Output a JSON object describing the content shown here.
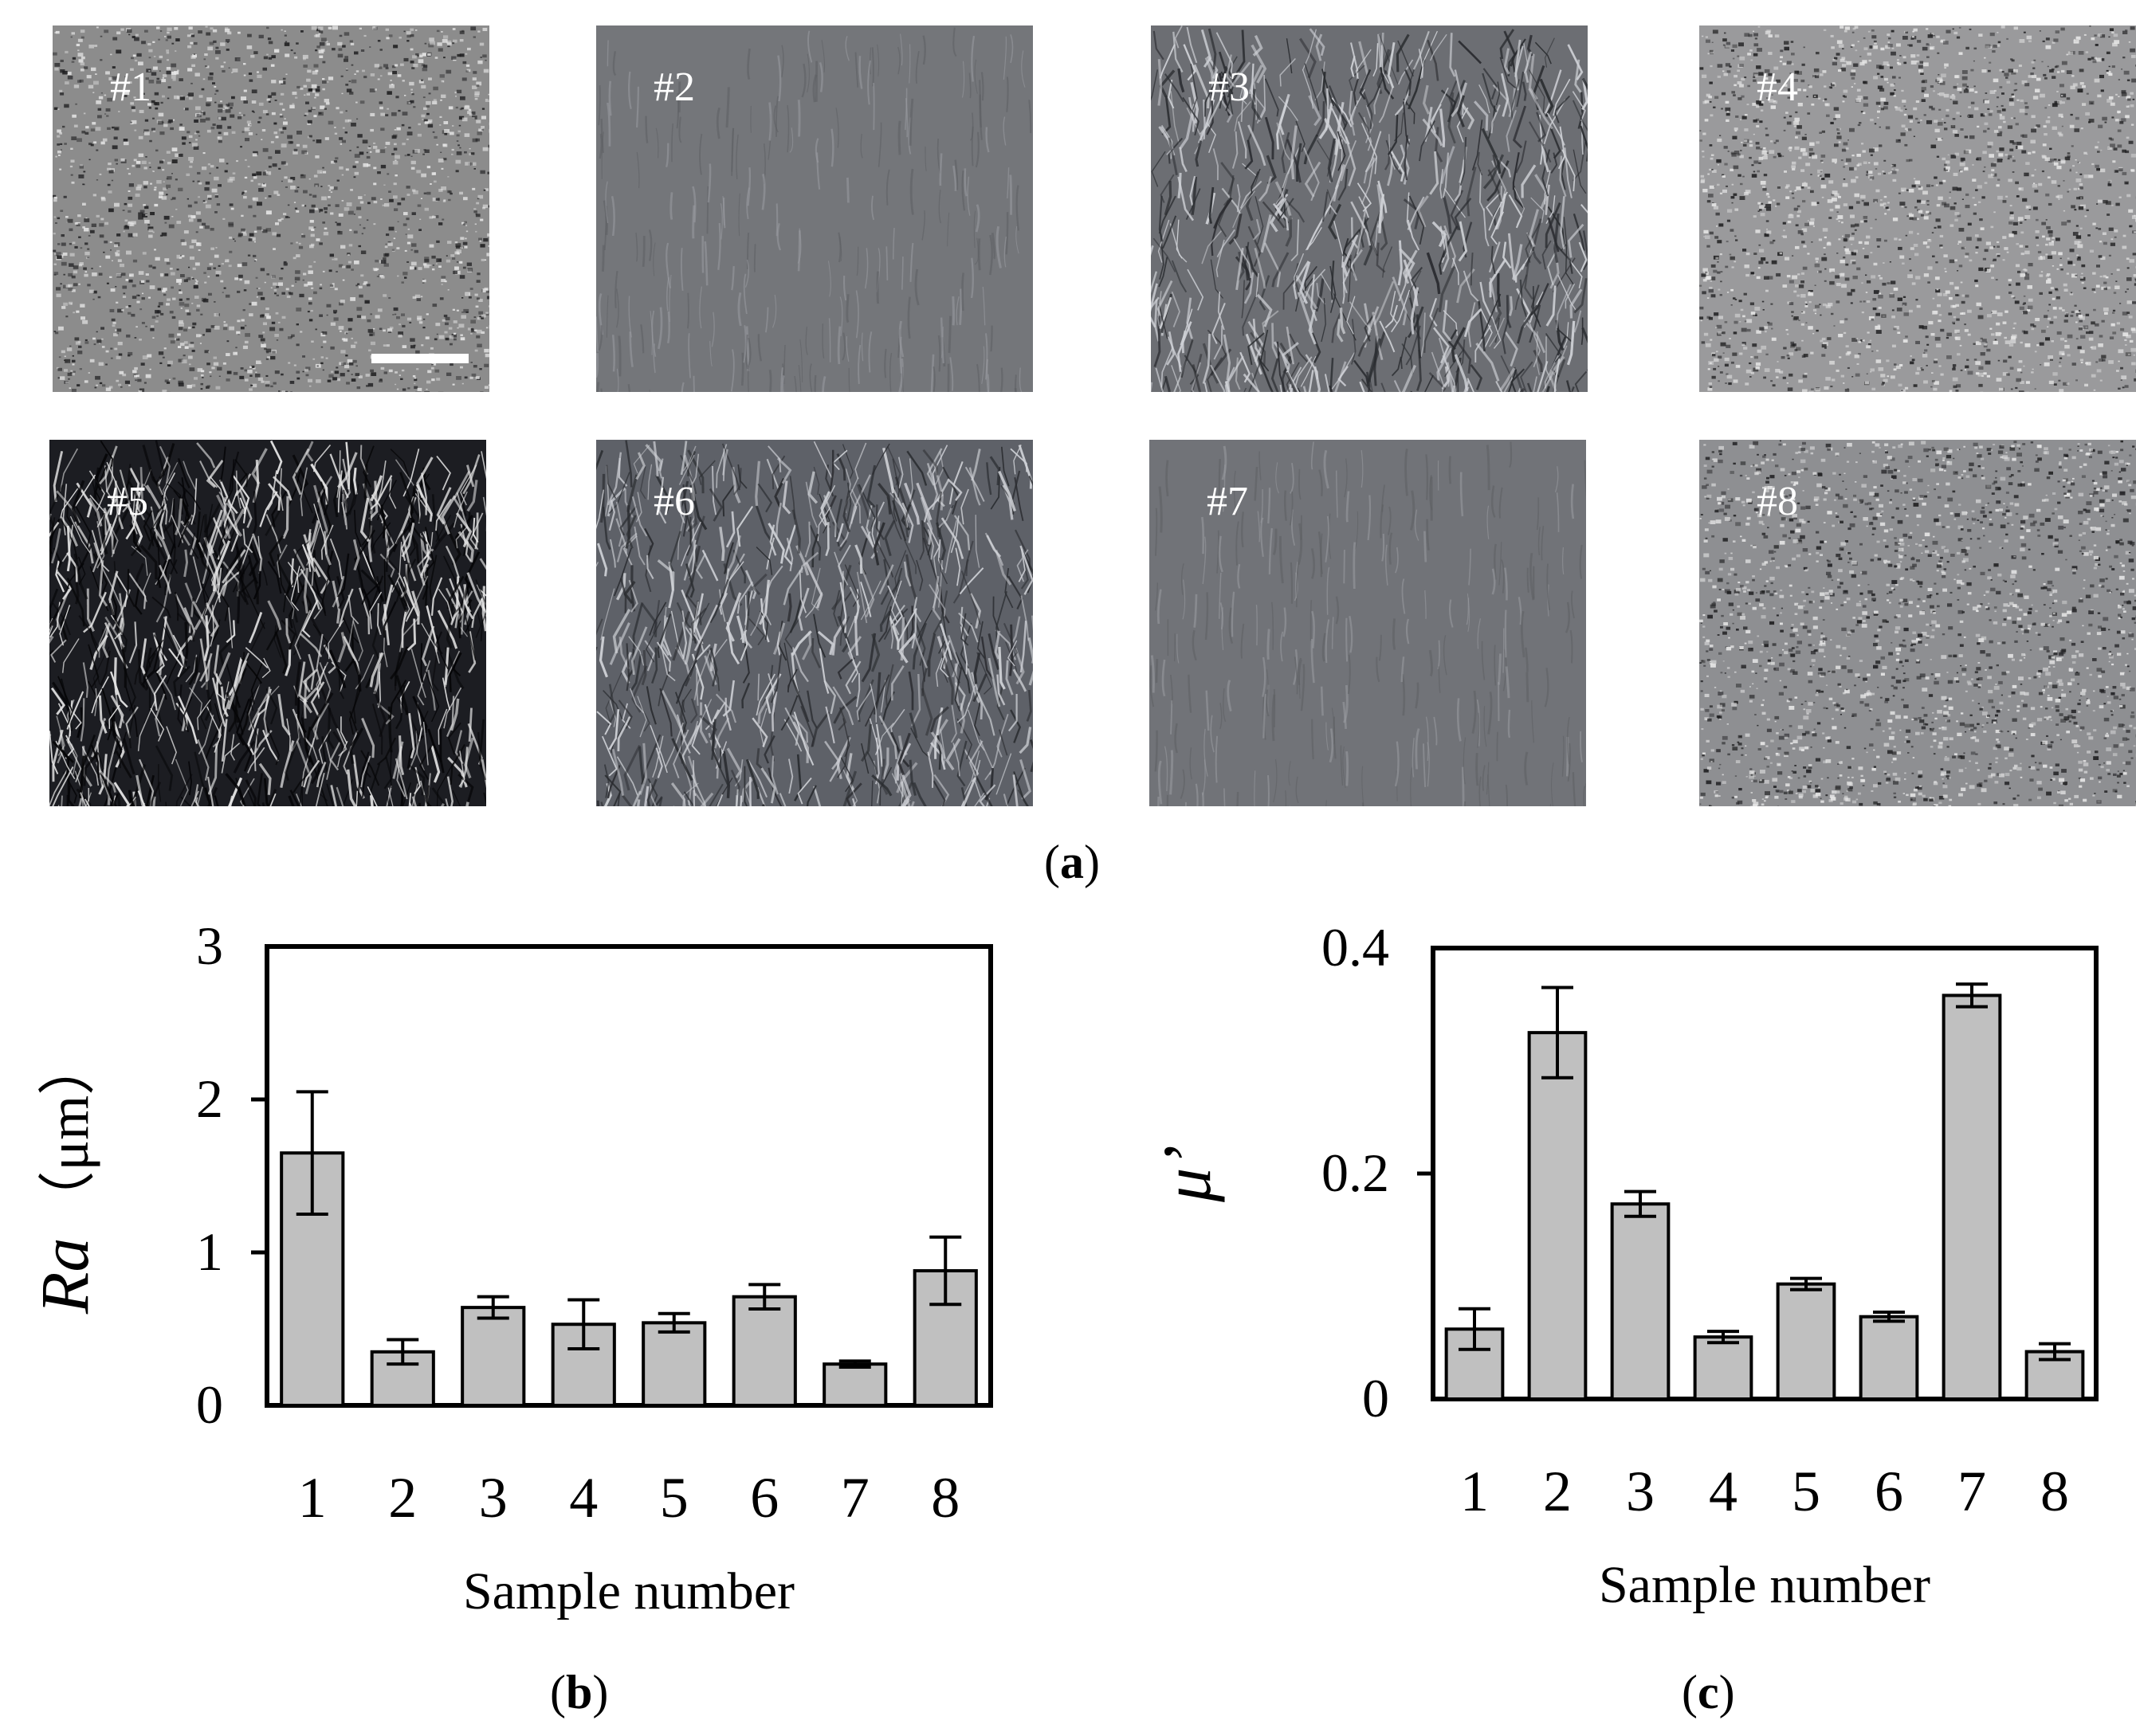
{
  "photos": [
    {
      "label": "#1",
      "tone": "#8c8c8c",
      "style": "speckle"
    },
    {
      "label": "#2",
      "tone": "#74767a",
      "style": "smooth"
    },
    {
      "label": "#3",
      "tone": "#6c6e73",
      "style": "cracked"
    },
    {
      "label": "#4",
      "tone": "#9a9a9c",
      "style": "speckle"
    },
    {
      "label": "#5",
      "tone": "#1c1d22",
      "style": "network"
    },
    {
      "label": "#6",
      "tone": "#5e6168",
      "style": "cracked"
    },
    {
      "label": "#7",
      "tone": "#717378",
      "style": "smooth"
    },
    {
      "label": "#8",
      "tone": "#8e8f92",
      "style": "speckle"
    }
  ],
  "panel_labels": {
    "a": "a",
    "b": "b",
    "c": "c"
  },
  "chart_data": [
    {
      "type": "bar",
      "panel": "b",
      "categories": [
        "1",
        "2",
        "3",
        "4",
        "5",
        "6",
        "7",
        "8"
      ],
      "values": [
        1.65,
        0.35,
        0.64,
        0.53,
        0.54,
        0.71,
        0.27,
        0.88
      ],
      "errors": [
        0.4,
        0.08,
        0.07,
        0.16,
        0.06,
        0.08,
        0.02,
        0.22
      ],
      "ylim": [
        0,
        3
      ],
      "yticks": [
        "0",
        "1",
        "2",
        "3"
      ],
      "ylabel_italic": "Ra",
      "ylabel_unit": "（μm）",
      "xlabel": "Sample number",
      "bar_color": "#c0c0c0"
    },
    {
      "type": "bar",
      "panel": "c",
      "categories": [
        "1",
        "2",
        "3",
        "4",
        "5",
        "6",
        "7",
        "8"
      ],
      "values": [
        0.062,
        0.325,
        0.173,
        0.055,
        0.102,
        0.073,
        0.358,
        0.042
      ],
      "errors": [
        0.018,
        0.04,
        0.011,
        0.005,
        0.005,
        0.004,
        0.01,
        0.007
      ],
      "ylim": [
        0,
        0.4
      ],
      "yticks": [
        "0",
        "0.2",
        "0.4"
      ],
      "ylabel_italic": "μ’",
      "ylabel_unit": "",
      "xlabel": "Sample number",
      "bar_color": "#c0c0c0"
    }
  ]
}
